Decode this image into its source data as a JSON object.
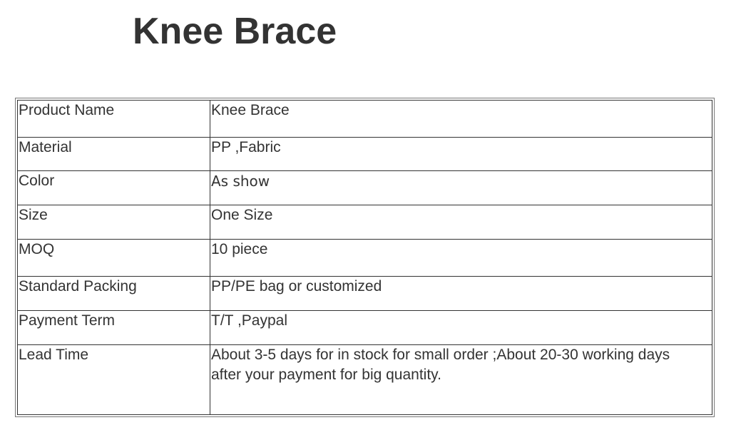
{
  "title": "Knee Brace",
  "rows": [
    {
      "label": "Product Name",
      "value": "Knee Brace"
    },
    {
      "label": "Material",
      "value": "PP ,Fabric"
    },
    {
      "label": "Color",
      "value": "As show"
    },
    {
      "label": "Size",
      "value": "One Size"
    },
    {
      "label": "MOQ",
      "value": "10 piece"
    },
    {
      "label": "Standard Packing",
      "value": "PP/PE bag or customized"
    },
    {
      "label": "Payment Term",
      "value": "T/T ,Paypal"
    },
    {
      "label": "Lead Time",
      "value": "About 3-5 days for in stock for small order ;About 20-30 working days",
      "value_line2": "after your payment for big quantity."
    }
  ]
}
